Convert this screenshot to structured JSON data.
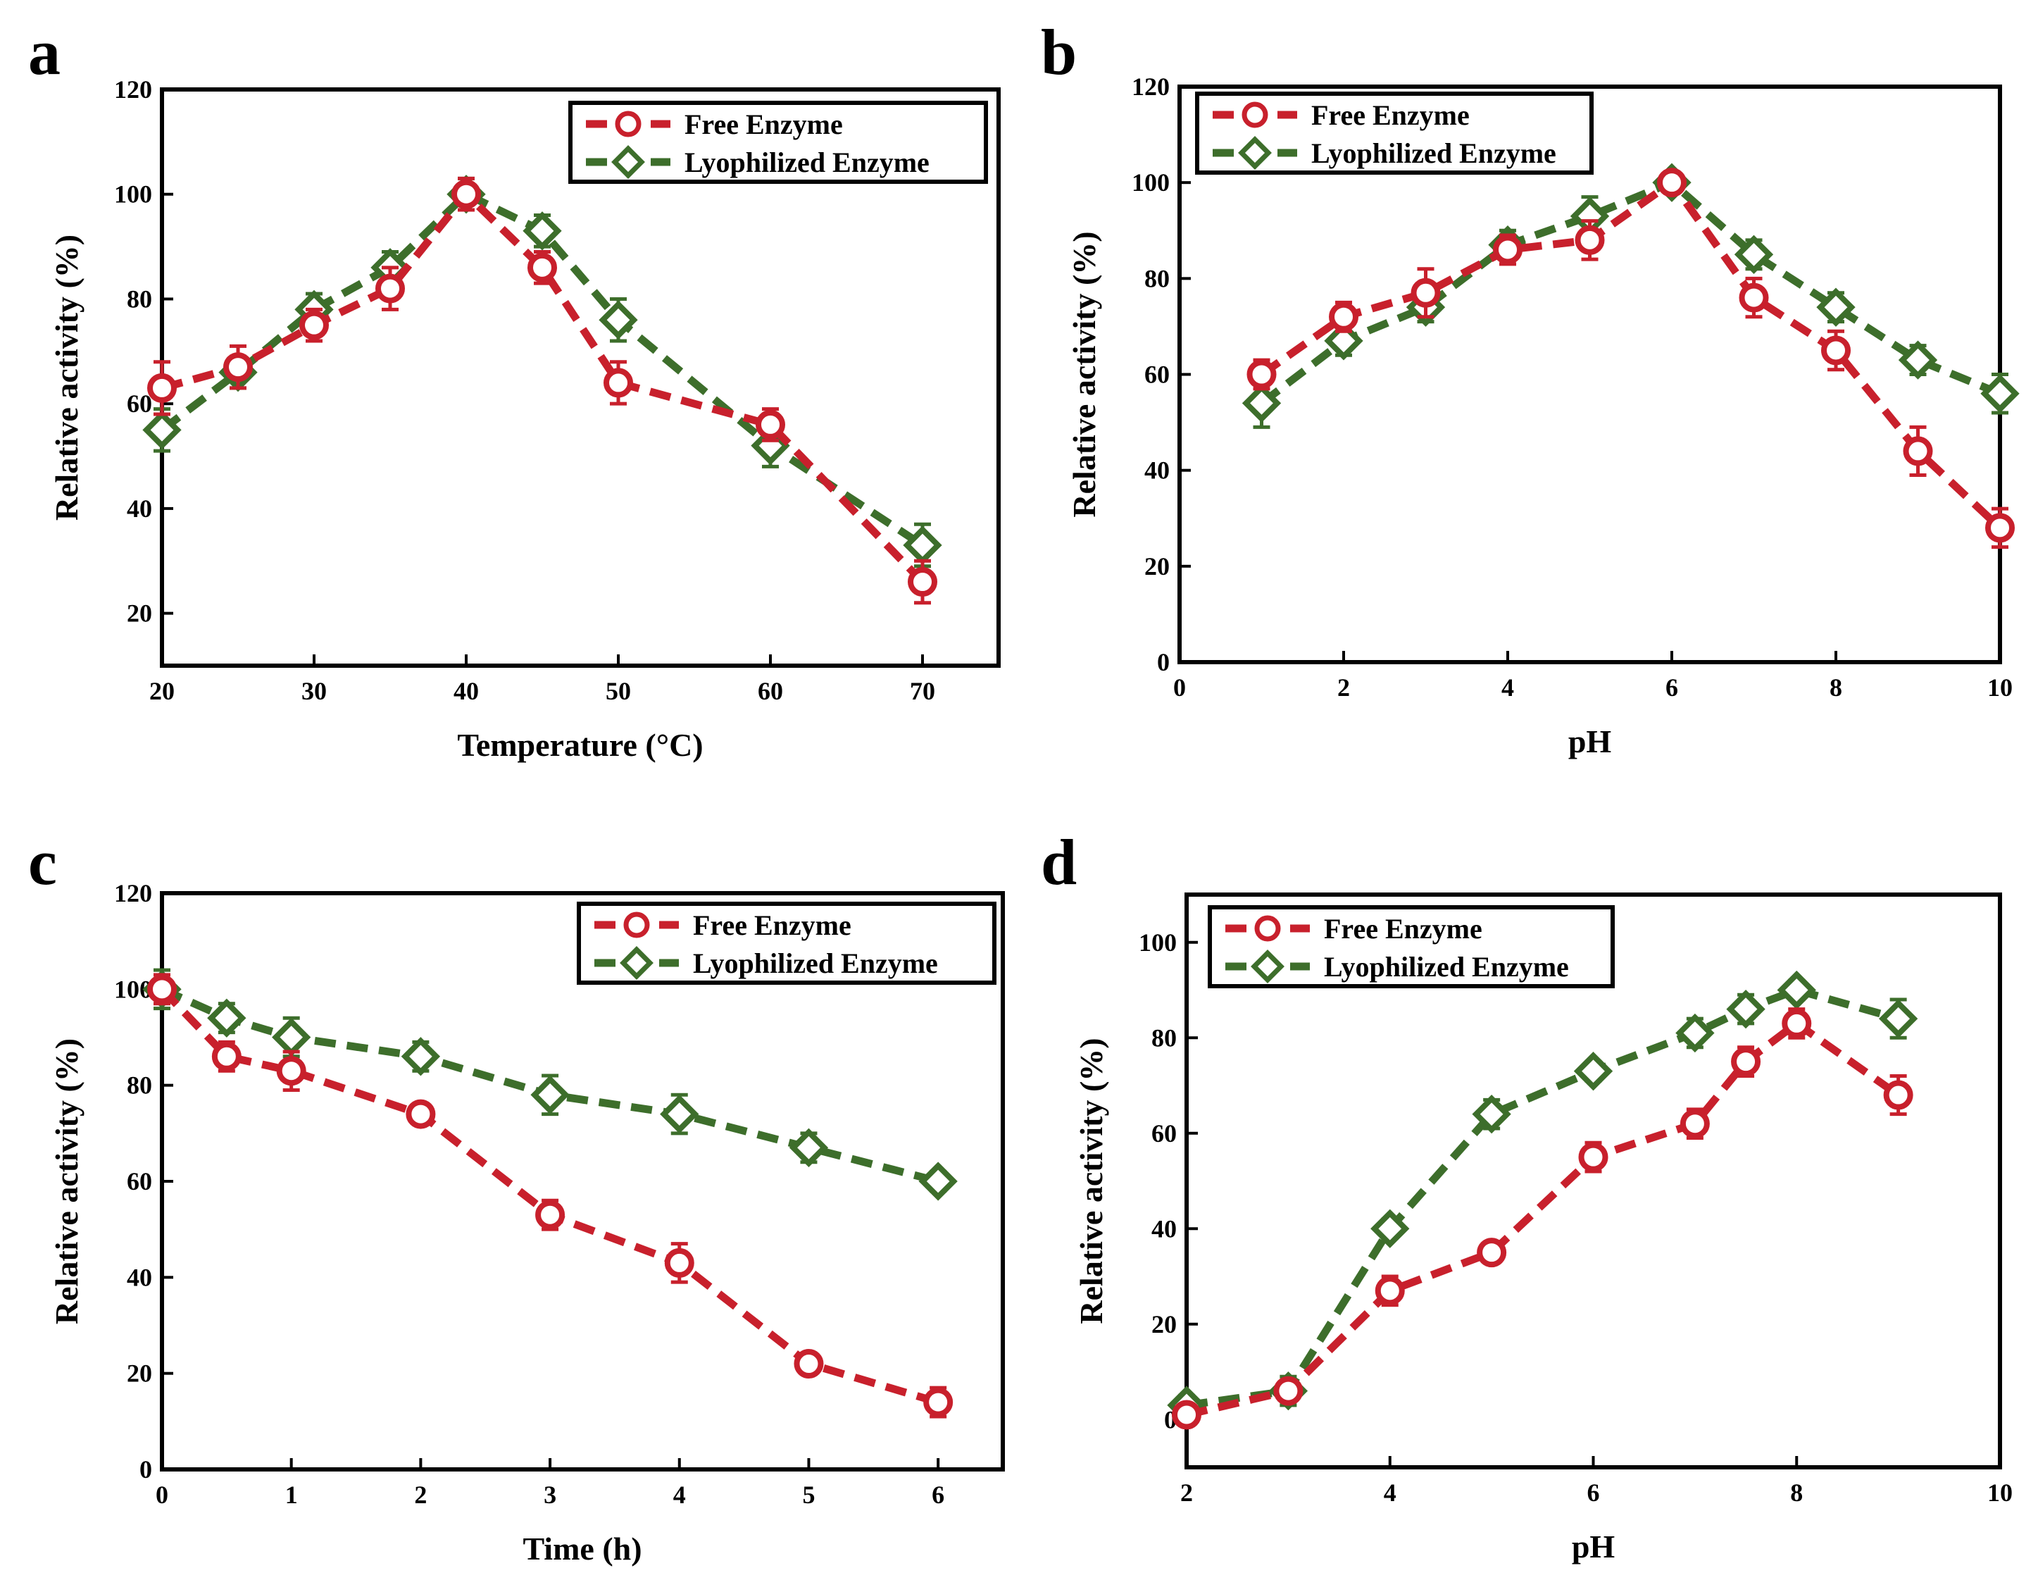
{
  "colors": {
    "free": "#c8202c",
    "lyo": "#3d6e2b"
  },
  "chart_data": [
    {
      "panel": "a",
      "type": "line",
      "xlabel": "Temperature (°C)",
      "ylabel": "Relative activity (%)",
      "xlim": [
        20,
        75
      ],
      "ylim": [
        10,
        120
      ],
      "xticks": [
        20,
        30,
        40,
        50,
        60,
        70
      ],
      "yticks": [
        20,
        40,
        60,
        80,
        100,
        120
      ],
      "legend": "top-right",
      "series": [
        {
          "name": "Free Enzyme",
          "marker": "circle",
          "x": [
            20,
            25,
            30,
            35,
            40,
            45,
            50,
            60,
            70
          ],
          "y": [
            63,
            67,
            75,
            82,
            100,
            86,
            64,
            56,
            26
          ],
          "err": [
            5,
            4,
            3,
            4,
            3,
            3,
            4,
            3,
            4
          ]
        },
        {
          "name": "Lyophilized Enzyme",
          "marker": "diamond",
          "x": [
            20,
            25,
            30,
            35,
            40,
            45,
            50,
            60,
            70
          ],
          "y": [
            55,
            66,
            78,
            86,
            100,
            93,
            76,
            52,
            33
          ],
          "err": [
            4,
            3,
            3,
            3,
            3,
            3,
            4,
            4,
            4
          ]
        }
      ]
    },
    {
      "panel": "b",
      "type": "line",
      "xlabel": "pH",
      "ylabel": "Relative activity (%)",
      "xlim": [
        0,
        10
      ],
      "ylim": [
        0,
        120
      ],
      "xticks": [
        0,
        2,
        4,
        6,
        8,
        10
      ],
      "yticks": [
        0,
        20,
        40,
        60,
        80,
        100,
        120
      ],
      "legend": "top-left",
      "series": [
        {
          "name": "Free Enzyme",
          "marker": "circle",
          "x": [
            1,
            2,
            3,
            4,
            5,
            6,
            7,
            8,
            9,
            10
          ],
          "y": [
            60,
            72,
            77,
            86,
            88,
            100,
            76,
            65,
            44,
            28
          ],
          "err": [
            3,
            3,
            5,
            3,
            4,
            2,
            4,
            4,
            5,
            4
          ]
        },
        {
          "name": "Lyophilized Enzyme",
          "marker": "diamond",
          "x": [
            1,
            2,
            3,
            4,
            5,
            6,
            7,
            8,
            9,
            10
          ],
          "y": [
            54,
            67,
            74,
            87,
            93,
            100,
            85,
            74,
            63,
            56
          ],
          "err": [
            5,
            3,
            3,
            3,
            4,
            2,
            3,
            3,
            3,
            4
          ]
        }
      ]
    },
    {
      "panel": "c",
      "type": "line",
      "xlabel": "Time (h)",
      "ylabel": "Relative activity (%)",
      "xlim": [
        0,
        6.5
      ],
      "ylim": [
        0,
        120
      ],
      "xticks": [
        0,
        1,
        2,
        3,
        4,
        5,
        6
      ],
      "yticks": [
        0,
        20,
        40,
        60,
        80,
        100,
        120
      ],
      "legend": "top-right",
      "series": [
        {
          "name": "Free Enzyme",
          "marker": "circle",
          "x": [
            0,
            0.5,
            1,
            2,
            3,
            4,
            5,
            6
          ],
          "y": [
            100,
            86,
            83,
            74,
            53,
            43,
            22,
            14
          ],
          "err": [
            3,
            3,
            4,
            2,
            3,
            4,
            2,
            3
          ]
        },
        {
          "name": "Lyophilized Enzyme",
          "marker": "diamond",
          "x": [
            0,
            0.5,
            1,
            2,
            3,
            4,
            5,
            6
          ],
          "y": [
            100,
            94,
            90,
            86,
            78,
            74,
            67,
            60
          ],
          "err": [
            4,
            3,
            4,
            3,
            4,
            4,
            3,
            2
          ]
        }
      ]
    },
    {
      "panel": "d",
      "type": "line",
      "xlabel": "pH",
      "ylabel": "Relative activity (%)",
      "xlim": [
        2,
        10
      ],
      "ylim": [
        -10,
        110
      ],
      "xticks": [
        2,
        4,
        6,
        8,
        10
      ],
      "yticks": [
        0,
        20,
        40,
        60,
        80,
        100
      ],
      "legend": "top-left",
      "series": [
        {
          "name": "Free Enzyme",
          "marker": "circle",
          "x": [
            2,
            3,
            4,
            5,
            6,
            7,
            7.5,
            8,
            9
          ],
          "y": [
            1,
            6,
            27,
            35,
            55,
            62,
            75,
            83,
            68
          ],
          "err": [
            2,
            2,
            3,
            2,
            3,
            3,
            3,
            3,
            4
          ]
        },
        {
          "name": "Lyophilized Enzyme",
          "marker": "diamond",
          "x": [
            2,
            3,
            4,
            5,
            6,
            7,
            7.5,
            8,
            9
          ],
          "y": [
            3,
            6,
            40,
            64,
            73,
            81,
            86,
            90,
            84
          ],
          "err": [
            2,
            3,
            2,
            3,
            2,
            3,
            3,
            2,
            4
          ]
        }
      ]
    }
  ]
}
